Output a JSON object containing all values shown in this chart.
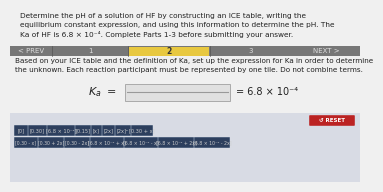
{
  "title_lines": [
    "Determine the pH of a solution of HF by constructing an ICE table, writing the",
    "equilibrium constant expression, and using this information to determine the pH. The",
    "Ka of HF is 6.8 × 10⁻⁴. Complete Parts 1-3 before submitting your answer."
  ],
  "nav_items": [
    "< PREV",
    "1",
    "2",
    "3",
    "NEXT >"
  ],
  "nav_active_index": 2,
  "nav_active_bg": "#e8c840",
  "nav_bar_bg": "#666666",
  "nav_text_color": "#dddddd",
  "nav_active_text": "#333333",
  "body_text_lines": [
    "Based on your ICE table and the definition of Ka, set up the expression for Ka in order to determine",
    "the unknown. Each reaction participant must be represented by one tile. Do not combine terms."
  ],
  "tile_bg": "#2d3f5e",
  "tile_text_color": "#cccccc",
  "tile_border": "#3a5070",
  "reset_bg": "#bb2222",
  "reset_text": "↺ RESET",
  "bottom_bg": "#d8dbe4",
  "tiles_row1": [
    "[0]",
    "[0.30]",
    "[6.8 × 10⁻⁴]",
    "[0.15]",
    "[x]",
    "[2x]",
    "[2x]²",
    "[0.30 + x]"
  ],
  "tiles_row2": [
    "[0.30 - x]",
    "[0.30 + 2x]",
    "[0.30 - 2x]",
    "[6.8 × 10⁻⁴ + x]",
    "[6.8 × 10⁻⁴ - x]",
    "[6.8 × 10⁻⁴ + 2x]",
    "[6.8 × 10⁻⁴ - 2x]"
  ],
  "main_bg": "#f0f0f0",
  "text_color": "#222222",
  "title_fontsize": 5.3,
  "body_fontsize": 5.2
}
